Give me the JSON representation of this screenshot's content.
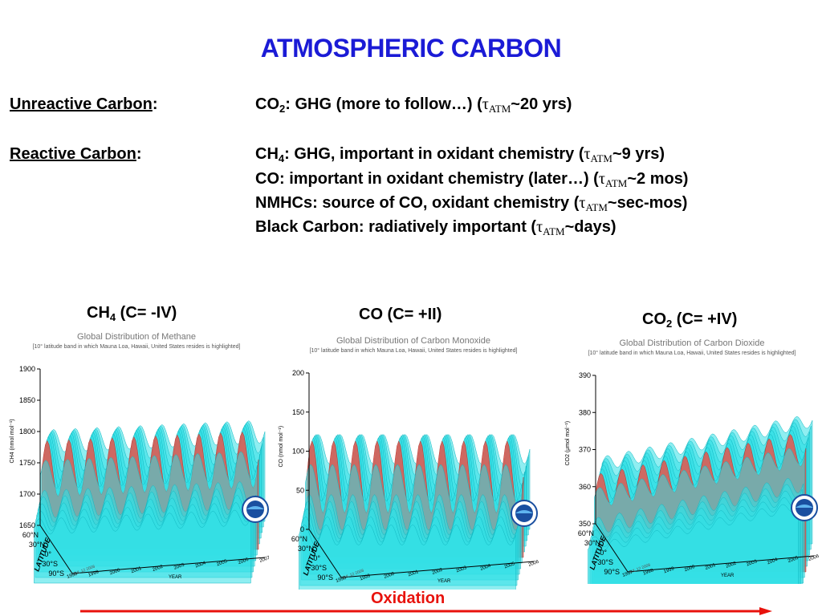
{
  "title": "ATMOSPHERIC CARBON",
  "unreactive": {
    "label": "Unreactive Carbon",
    "colon": ":",
    "co2": {
      "species": "CO",
      "sub": "2",
      "text": ": GHG (more to follow…) (",
      "tau": "τ",
      "tau_sub": "ATM",
      "end": "~20 yrs)"
    }
  },
  "reactive": {
    "label": "Reactive Carbon",
    "colon": ":",
    "ch4": {
      "species": "CH",
      "sub": "4",
      "text": ": GHG, important in oxidant chemistry (",
      "tau": "τ",
      "tau_sub": "ATM",
      "end": "~9 yrs)"
    },
    "co": {
      "text": "CO: important in oxidant chemistry (later…) (",
      "tau": "τ",
      "tau_sub": "ATM",
      "end": "~2 mos)"
    },
    "nmhc": {
      "text": "NMHCs: source of CO, oxidant chemistry (",
      "tau": "τ",
      "tau_sub": "ATM",
      "end": "~sec-mos)"
    },
    "bc": {
      "text": "Black Carbon: radiatively important (",
      "tau": "τ",
      "tau_sub": "ATM",
      "end": "~days)"
    }
  },
  "panels": [
    {
      "label_species": "CH",
      "label_sub": "4",
      "label_rest": " (C= -IV)",
      "title": "Global Distribution of Methane",
      "subtitle": "[10° latitude band in which Mauna Loa, Hawaii, United States resides is highlighted]",
      "yaxis_label": "CH4 (nmol mol⁻¹)",
      "yticks": [
        "1900",
        "1850",
        "1800",
        "1750",
        "1700",
        "1650"
      ],
      "lat_ticks": [
        "60°N",
        "30°N",
        "0°",
        "30°S",
        "90°S"
      ],
      "lat_label": "LATITUDE",
      "year_ticks": [
        "1998",
        "1999",
        "2000",
        "2001",
        "2002",
        "2003",
        "2004",
        "2005",
        "2006",
        "2007"
      ],
      "year_label": "YEAR",
      "date_note": "JUL 12 2008"
    },
    {
      "label_species": "CO",
      "label_sub": "",
      "label_rest": " (C= +II)",
      "title": "Global Distribution of Carbon Monoxide",
      "subtitle": "[10° latitude band in which Mauna Loa, Hawaii, United States resides is highlighted]",
      "yaxis_label": "CO (nmol mol⁻¹)",
      "yticks": [
        "200",
        "150",
        "100",
        "50",
        "0"
      ],
      "lat_ticks": [
        "60°N",
        "30°N",
        "0°",
        "30°S",
        "90°S"
      ],
      "lat_label": "LATITUDE",
      "year_ticks": [
        "1998",
        "1999",
        "2000",
        "2001",
        "2002",
        "2003",
        "2004",
        "2005",
        "2006"
      ],
      "year_label": "YEAR",
      "date_note": "JUL 12 2008"
    },
    {
      "label_species": "CO",
      "label_sub": "2",
      "label_rest": " (C= +IV)",
      "title": "Global Distribution of Carbon Dioxide",
      "subtitle": "[10° latitude band in which Mauna Loa, Hawaii, United States resides is highlighted]",
      "yaxis_label": "CO2 (μmol mol⁻¹)",
      "yticks": [
        "390",
        "380",
        "370",
        "360",
        "350"
      ],
      "lat_ticks": [
        "60°N",
        "30°N",
        "0°",
        "30°S",
        "90°S"
      ],
      "lat_label": "LATITUDE",
      "year_ticks": [
        "1997",
        "1998",
        "1999",
        "2000",
        "2001",
        "2002",
        "2003",
        "2004",
        "2005",
        "2006"
      ],
      "year_label": "YEAR",
      "date_note": "JUL 12 2008"
    }
  ],
  "oxidation_label": "Oxidation",
  "colors": {
    "title": "#1b1bd6",
    "surface": "#33e0e6",
    "highlight": "#e8544a",
    "arrow": "#e8120c"
  }
}
